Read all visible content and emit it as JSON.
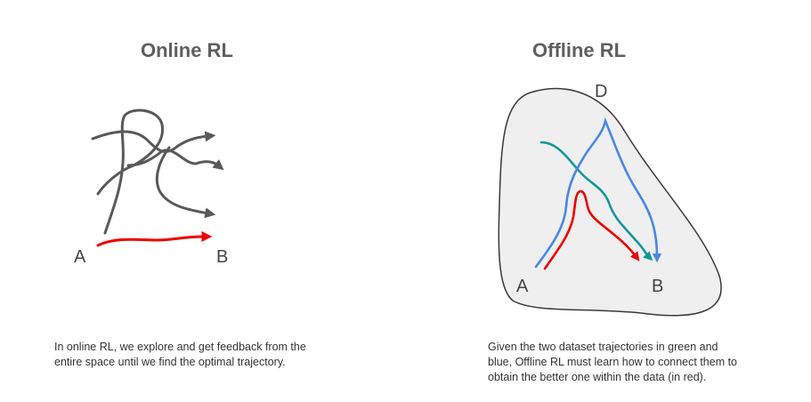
{
  "online": {
    "title": "Online RL",
    "label_a": "A",
    "label_b": "B",
    "caption_lines": [
      "In online RL, we explore and get feedback from the",
      "entire space until we find the optimal trajectory."
    ]
  },
  "offline": {
    "title": "Offline RL",
    "label_d": "D",
    "label_a": "A",
    "label_b": "B",
    "caption_lines": [
      "Given the two dataset trajectories in green and",
      "blue, Offline RL must learn how to connect them to",
      "obtain the better one within the data (in red)."
    ]
  },
  "colors": {
    "explore": "#595959",
    "optimal": "#ee0000",
    "green_trajectory": "#13979a",
    "blue_trajectory": "#4a86e8",
    "dataset_fill": "#efefef",
    "dataset_stroke": "#3a3a3a"
  }
}
